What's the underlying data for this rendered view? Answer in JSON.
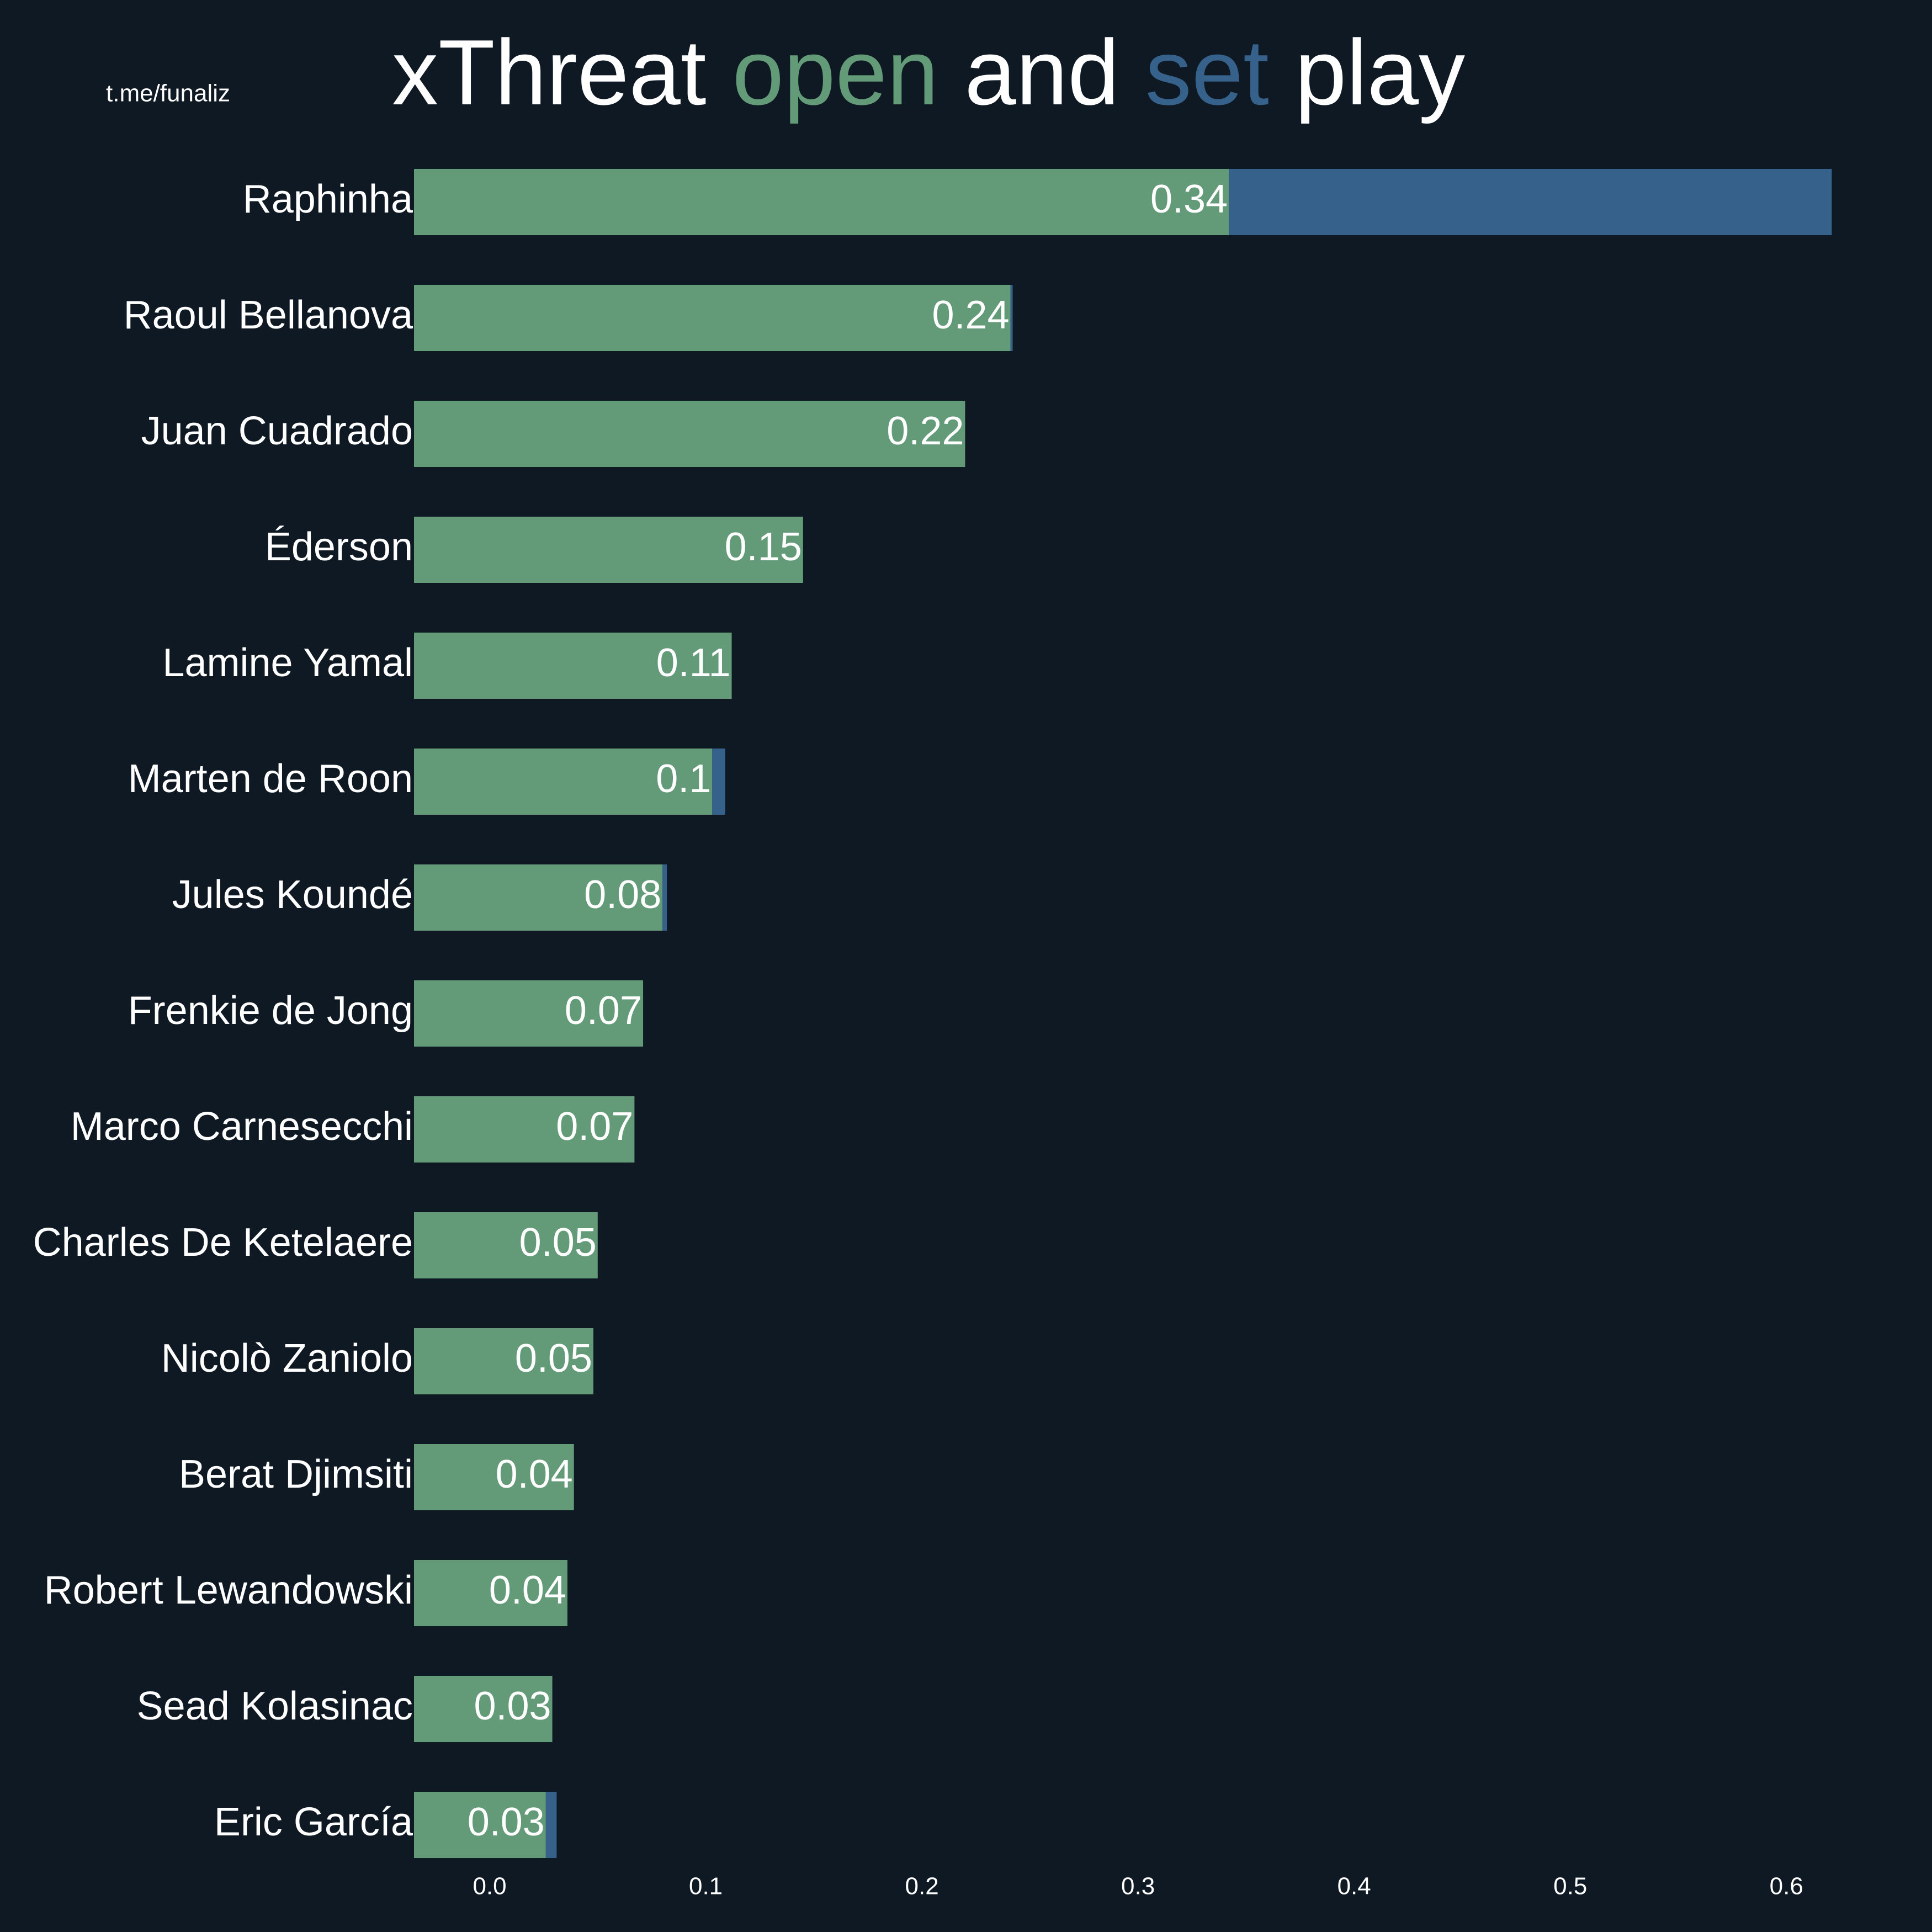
{
  "chart_data": {
    "type": "bar",
    "orientation": "horizontal",
    "stacked": true,
    "title": [
      "xThreat",
      "and",
      "play"
    ],
    "watermark": "t.me/funaliz",
    "categories": [
      "Raphinha",
      "Raoul Bellanova",
      "Juan Cuadrado",
      "Éderson",
      "Lamine Yamal",
      "Marten de Roon",
      "Jules Koundé",
      "Frenkie de Jong",
      "Marco Carnesecchi",
      "Charles De Ketelaere",
      "Nicolò Zaniolo",
      "Berat Djimsiti",
      "Robert Lewandowski",
      "Sead Kolasinac",
      "Eric García"
    ],
    "series": [
      {
        "name": "open",
        "color": "#639a78",
        "values": [
          0.342,
          0.241,
          0.22,
          0.145,
          0.112,
          0.103,
          0.08,
          0.071,
          0.067,
          0.05,
          0.048,
          0.039,
          0.036,
          0.029,
          0.026
        ],
        "value_labels": [
          "0.34",
          "0.24",
          "0.22",
          "0.15",
          "0.11",
          "0.1",
          "0.08",
          "0.07",
          "0.07",
          "0.05",
          "0.05",
          "0.04",
          "0.04",
          "0.03",
          "0.03"
        ]
      },
      {
        "name": "set",
        "color": "#36618a",
        "values": [
          0.279,
          0.001,
          0,
          0,
          0,
          0.006,
          0.002,
          0,
          0,
          0,
          0,
          0,
          0,
          0,
          0.005
        ]
      }
    ],
    "xlim": [
      -0.035,
      0.65
    ],
    "xticks": [
      {
        "value": 0,
        "label": "0.0"
      },
      0.1,
      0.2,
      0.3,
      0.4,
      0.5,
      0.6
    ]
  }
}
